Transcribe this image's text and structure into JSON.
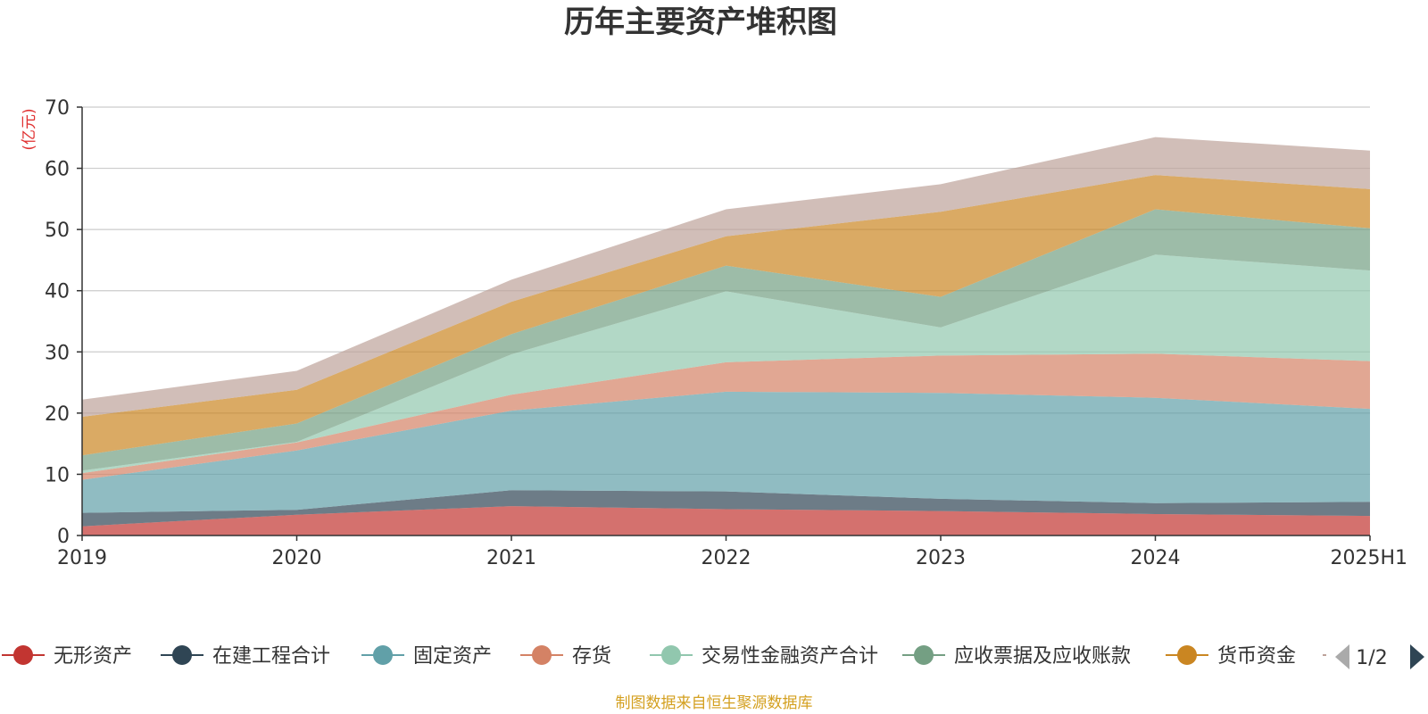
{
  "chart_data": {
    "type": "area",
    "stacked": true,
    "title": "历年主要资产堆积图",
    "y_unit_label": "(亿元)",
    "categories": [
      "2019",
      "2020",
      "2021",
      "2022",
      "2023",
      "2024",
      "2025H1"
    ],
    "ylim": [
      0,
      70
    ],
    "yticks": [
      0,
      10,
      20,
      30,
      40,
      50,
      60,
      70
    ],
    "grid": true,
    "series": [
      {
        "name": "无形资产",
        "color": "#c23531",
        "values": [
          1.5,
          3.4,
          4.8,
          4.3,
          4.0,
          3.5,
          3.2
        ]
      },
      {
        "name": "在建工程合计",
        "color": "#2f4554",
        "values": [
          2.2,
          0.8,
          2.6,
          2.9,
          2.0,
          1.8,
          2.3
        ]
      },
      {
        "name": "固定资产",
        "color": "#61a0a8",
        "values": [
          5.4,
          9.7,
          13.0,
          16.3,
          17.3,
          17.2,
          15.2
        ]
      },
      {
        "name": "存货",
        "color": "#d48265",
        "values": [
          1.1,
          1.3,
          2.6,
          4.8,
          6.1,
          7.2,
          7.8
        ]
      },
      {
        "name": "交易性金融资产合计",
        "color": "#91c7ae",
        "values": [
          0.4,
          0.1,
          6.6,
          11.6,
          4.6,
          16.2,
          14.8
        ]
      },
      {
        "name": "应收票据及应收账款",
        "color": "#749f83",
        "values": [
          2.5,
          3.0,
          3.3,
          4.2,
          5.0,
          7.4,
          6.9
        ]
      },
      {
        "name": "货币资金",
        "color": "#ca8622",
        "values": [
          6.3,
          5.5,
          5.3,
          4.8,
          13.9,
          5.6,
          6.4
        ]
      },
      {
        "name": "",
        "color": "#bda29a",
        "values": [
          2.8,
          3.1,
          3.6,
          4.4,
          4.5,
          6.2,
          6.3
        ]
      }
    ],
    "legend_position": "bottom",
    "legend_page": "1/2"
  },
  "source_note": "制图数据来自恒生聚源数据库",
  "colors": {
    "title": "#333333",
    "unit": "#e03030",
    "source": "#d4a020",
    "grid": "#cccccc",
    "axis": "#333333",
    "pager_active": "#2f4554",
    "pager_inactive": "#aaaaaa"
  }
}
